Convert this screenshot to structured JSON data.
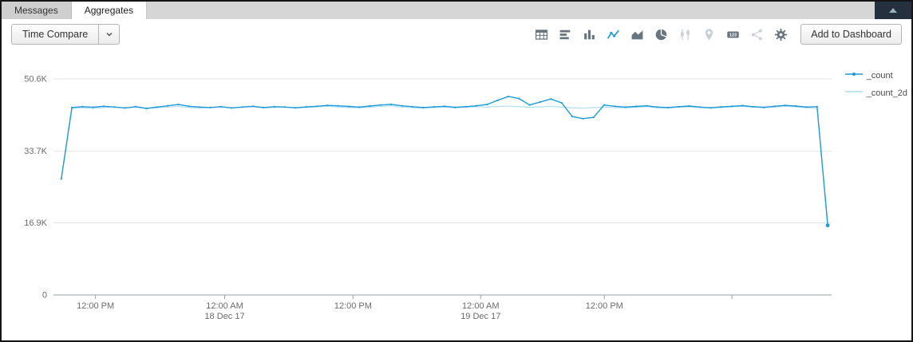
{
  "tabs": [
    {
      "label": "Messages",
      "active": false
    },
    {
      "label": "Aggregates",
      "active": true
    }
  ],
  "panel": {
    "collapse_icon": "collapse-up-icon"
  },
  "toolbar": {
    "time_compare": {
      "label": "Time Compare",
      "chevron_icon": "chevron-down-icon"
    },
    "add_to_dashboard_label": "Add to Dashboard",
    "chart_type_icons": [
      {
        "name": "table-icon",
        "state": "normal"
      },
      {
        "name": "bar-chart-icon",
        "state": "normal"
      },
      {
        "name": "column-chart-icon",
        "state": "normal"
      },
      {
        "name": "line-chart-icon",
        "state": "selected"
      },
      {
        "name": "area-chart-icon",
        "state": "normal"
      },
      {
        "name": "pie-chart-icon",
        "state": "normal"
      },
      {
        "name": "box-plot-icon",
        "state": "disabled"
      },
      {
        "name": "map-icon",
        "state": "disabled"
      },
      {
        "name": "single-value-icon",
        "state": "normal",
        "glyph": "123"
      },
      {
        "name": "node-graph-icon",
        "state": "disabled"
      },
      {
        "name": "settings-gear-icon",
        "state": "normal"
      }
    ]
  },
  "colors": {
    "accent_blue": "#2d9fd9",
    "icon_gray": "#68757f",
    "icon_disabled": "#c9d1d6",
    "count_line": "#1f9ad6",
    "count_2d_line": "#aadcf0",
    "gridline": "#e4e4e4",
    "axis_line": "#9aa0a6"
  },
  "chart_data": {
    "type": "line",
    "title": "",
    "xlabel": "",
    "ylabel": "",
    "grid": "horizontal",
    "legend_position": "right",
    "y_axis": {
      "range": [
        0,
        50600
      ],
      "ticks": [
        {
          "value": 50600,
          "label": "50.6K"
        },
        {
          "value": 33700,
          "label": "33.7K"
        },
        {
          "value": 16900,
          "label": "16.9K"
        },
        {
          "value": 0,
          "label": "0"
        }
      ]
    },
    "x_axis": {
      "ticks": [
        {
          "pos": 0.054,
          "label": "12:00 PM",
          "sublabel": ""
        },
        {
          "pos": 0.22,
          "label": "12:00 AM",
          "sublabel": "18 Dec 17"
        },
        {
          "pos": 0.385,
          "label": "12:00 PM",
          "sublabel": ""
        },
        {
          "pos": 0.549,
          "label": "12:00 AM",
          "sublabel": "19 Dec 17"
        },
        {
          "pos": 0.708,
          "label": "12:00 PM",
          "sublabel": ""
        },
        {
          "pos": 0.872,
          "label": "",
          "sublabel": ""
        }
      ]
    },
    "x_span": [
      0.01,
      0.995
    ],
    "series": [
      {
        "name": "_count",
        "color": "#1f9ad6",
        "marker": true,
        "values": [
          27200,
          43900,
          44100,
          43950,
          44200,
          44000,
          43800,
          44100,
          43700,
          44000,
          44300,
          44600,
          44200,
          44000,
          43900,
          44100,
          43800,
          44000,
          44200,
          43900,
          44100,
          44000,
          43850,
          44050,
          44200,
          44400,
          44300,
          44150,
          44000,
          44250,
          44500,
          44650,
          44300,
          44100,
          43900,
          44050,
          44200,
          43950,
          44100,
          44300,
          44600,
          45600,
          46500,
          46000,
          44500,
          45200,
          45900,
          45000,
          41800,
          41300,
          41600,
          44500,
          44200,
          44000,
          44150,
          44300,
          44000,
          43900,
          44100,
          44250,
          44000,
          43850,
          44050,
          44200,
          44350,
          44100,
          43950,
          44200,
          44400,
          44250,
          44000,
          44100,
          16300
        ]
      },
      {
        "name": "_count_2d",
        "color": "#aadcf0",
        "marker": false,
        "values": [
          26900,
          43700,
          43850,
          43700,
          43900,
          44050,
          43800,
          43950,
          43700,
          43850,
          44000,
          44150,
          43900,
          43750,
          43900,
          44000,
          43850,
          43950,
          44100,
          43800,
          43900,
          44000,
          43750,
          43900,
          44050,
          44200,
          44000,
          43900,
          43800,
          44000,
          44150,
          44300,
          44000,
          43850,
          43750,
          43900,
          44000,
          43800,
          43950,
          44100,
          44000,
          44150,
          44250,
          44100,
          43950,
          44050,
          44150,
          44000,
          43850,
          43750,
          43900,
          44000,
          43900,
          43800,
          43950,
          44100,
          43850,
          43750,
          43950,
          44050,
          43900,
          43750,
          43900,
          44050,
          44150,
          43950,
          43800,
          44000,
          44200,
          44050,
          43850,
          43700,
          17000
        ]
      }
    ]
  }
}
